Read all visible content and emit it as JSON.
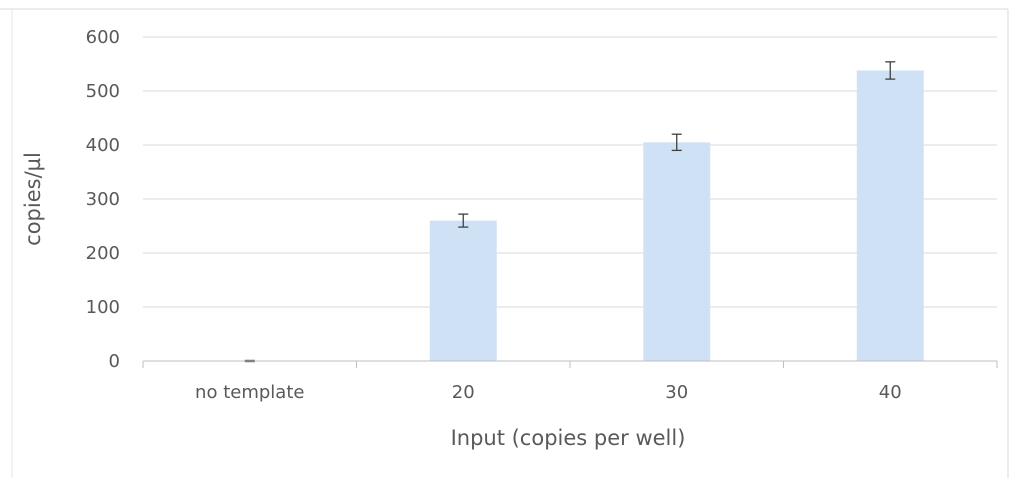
{
  "chart_data": {
    "type": "bar",
    "title": "",
    "xlabel": "Input (copies per well)",
    "ylabel": "copies/µl",
    "categories": [
      "no template",
      "20",
      "30",
      "40"
    ],
    "series": [
      {
        "values": [
          0,
          260,
          405,
          538
        ],
        "error": [
          1,
          12,
          15,
          16
        ]
      }
    ],
    "ylim": [
      0,
      600
    ],
    "yticks": [
      "0",
      "100",
      "200",
      "300",
      "400",
      "500",
      "600"
    ],
    "grid": true,
    "legend": "none",
    "colors": {
      "bar": "#cfe2f5",
      "error_bar": "#404040",
      "grid": "#d9d9d9",
      "axis": "#bfbfbf",
      "text": "#595959",
      "frame": "#d9d9d9"
    }
  }
}
